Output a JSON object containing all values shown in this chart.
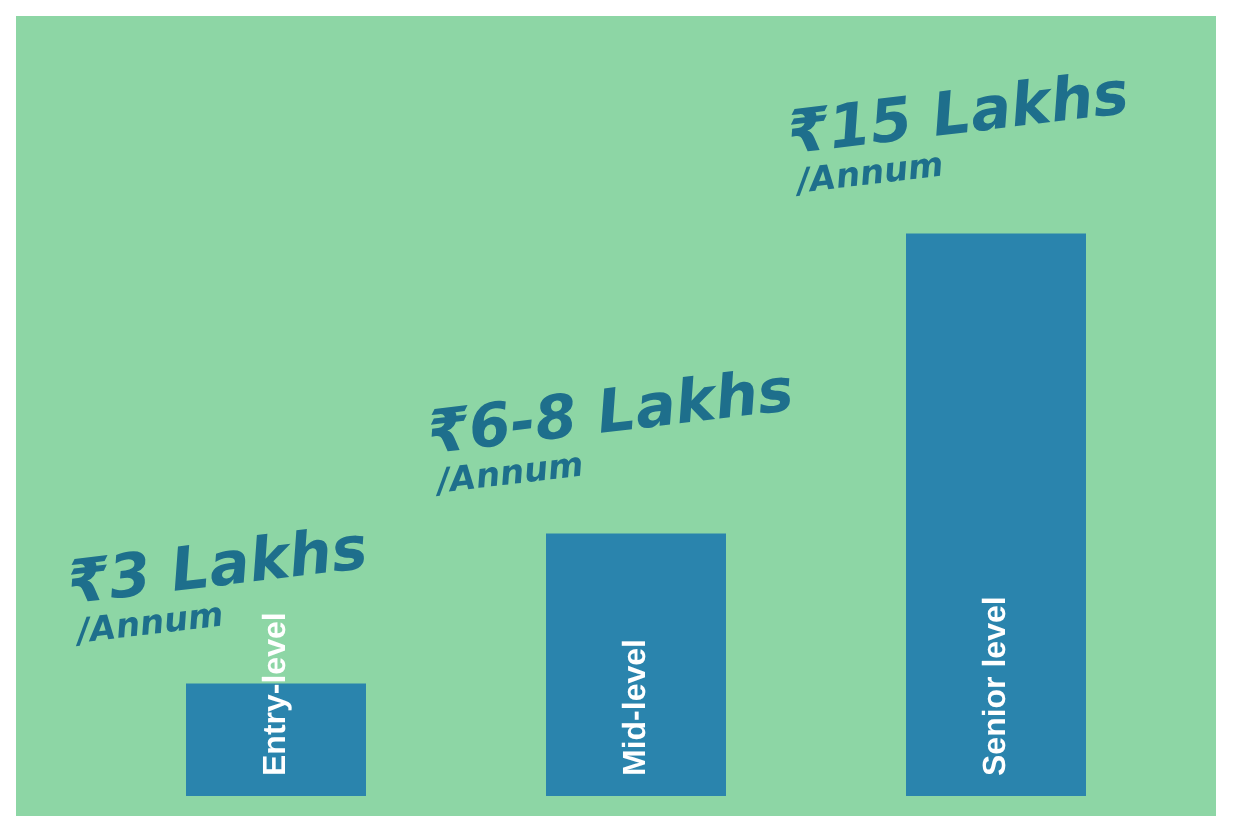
{
  "chart_data": {
    "type": "bar",
    "categories": [
      "Entry-level",
      "Mid-level",
      "Senior level"
    ],
    "values": [
      3,
      7,
      15
    ],
    "value_labels": [
      "₹3 Lakhs /Annum",
      "₹6-8 Lakhs /Annum",
      "₹15 Lakhs /Annum"
    ],
    "color": "#2a84ad",
    "legend": false
  }
}
